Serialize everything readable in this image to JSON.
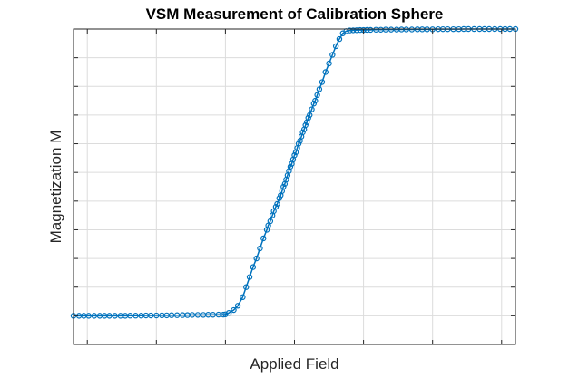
{
  "chart_data": {
    "type": "line",
    "title": "VSM Measurement of Calibration Sphere",
    "xlabel": "Applied Field",
    "ylabel": "Magnetization M",
    "xlim": [
      -3.2,
      3.2
    ],
    "ylim": [
      -1.2,
      1.0
    ],
    "x_ticks": [
      -3,
      -2,
      -1,
      0,
      1,
      2,
      3
    ],
    "y_ticks": [
      -1.2,
      -1.0,
      -0.8,
      -0.6,
      -0.4,
      -0.2,
      0.0,
      0.2,
      0.4,
      0.6,
      0.8,
      1.0
    ],
    "grid": true,
    "tick_labels_shown": false,
    "legend": "none",
    "series": [
      {
        "color": "#0072bd",
        "marker": "circle",
        "x": [
          -3.2,
          -3.12,
          -3.05,
          -2.98,
          -2.9,
          -2.82,
          -2.75,
          -2.68,
          -2.6,
          -2.52,
          -2.45,
          -2.38,
          -2.3,
          -2.22,
          -2.15,
          -2.08,
          -2.0,
          -1.92,
          -1.85,
          -1.78,
          -1.7,
          -1.62,
          -1.55,
          -1.48,
          -1.4,
          -1.32,
          -1.25,
          -1.18,
          -1.1,
          -1.03,
          -1.0,
          -0.95,
          -0.88,
          -0.82,
          -0.75,
          -0.7,
          -0.65,
          -0.6,
          -0.55,
          -0.5,
          -0.45,
          -0.4,
          -0.38,
          -0.35,
          -0.32,
          -0.3,
          -0.27,
          -0.25,
          -0.22,
          -0.2,
          -0.18,
          -0.16,
          -0.14,
          -0.12,
          -0.1,
          -0.08,
          -0.06,
          -0.04,
          -0.02,
          0.0,
          0.02,
          0.04,
          0.06,
          0.08,
          0.1,
          0.12,
          0.14,
          0.16,
          0.18,
          0.2,
          0.22,
          0.25,
          0.28,
          0.3,
          0.33,
          0.36,
          0.4,
          0.45,
          0.5,
          0.55,
          0.6,
          0.65,
          0.7,
          0.75,
          0.8,
          0.85,
          0.9,
          0.95,
          1.0,
          1.05,
          1.1,
          1.18,
          1.25,
          1.32,
          1.4,
          1.48,
          1.55,
          1.62,
          1.7,
          1.78,
          1.85,
          1.92,
          2.0,
          2.08,
          2.15,
          2.22,
          2.3,
          2.38,
          2.45,
          2.52,
          2.6,
          2.68,
          2.75,
          2.82,
          2.9,
          2.98,
          3.05,
          3.12,
          3.2
        ],
        "y": [
          -1.0,
          -1.0,
          -1.0,
          -1.0,
          -1.0,
          -1.0,
          -1.0,
          -1.0,
          -1.0,
          -1.0,
          -1.0,
          -0.999,
          -0.999,
          -0.999,
          -0.998,
          -0.998,
          -0.998,
          -0.997,
          -0.997,
          -0.996,
          -0.996,
          -0.995,
          -0.995,
          -0.994,
          -0.994,
          -0.994,
          -0.993,
          -0.993,
          -0.992,
          -0.992,
          -0.99,
          -0.98,
          -0.96,
          -0.93,
          -0.87,
          -0.8,
          -0.73,
          -0.66,
          -0.6,
          -0.53,
          -0.46,
          -0.4,
          -0.37,
          -0.34,
          -0.3,
          -0.27,
          -0.24,
          -0.22,
          -0.18,
          -0.16,
          -0.13,
          -0.1,
          -0.08,
          -0.05,
          -0.02,
          0.01,
          0.04,
          0.06,
          0.09,
          0.12,
          0.14,
          0.17,
          0.2,
          0.22,
          0.25,
          0.28,
          0.3,
          0.33,
          0.35,
          0.38,
          0.4,
          0.44,
          0.48,
          0.5,
          0.54,
          0.58,
          0.63,
          0.7,
          0.76,
          0.82,
          0.88,
          0.93,
          0.97,
          0.985,
          0.99,
          0.991,
          0.992,
          0.993,
          0.993,
          0.994,
          0.994,
          0.995,
          0.995,
          0.996,
          0.996,
          0.996,
          0.997,
          0.997,
          0.997,
          0.998,
          0.998,
          0.998,
          0.998,
          0.999,
          0.999,
          0.999,
          0.999,
          0.999,
          1.0,
          1.0,
          1.0,
          1.0,
          1.0,
          1.0,
          1.0,
          1.0,
          1.0,
          1.0,
          1.0
        ]
      }
    ]
  }
}
